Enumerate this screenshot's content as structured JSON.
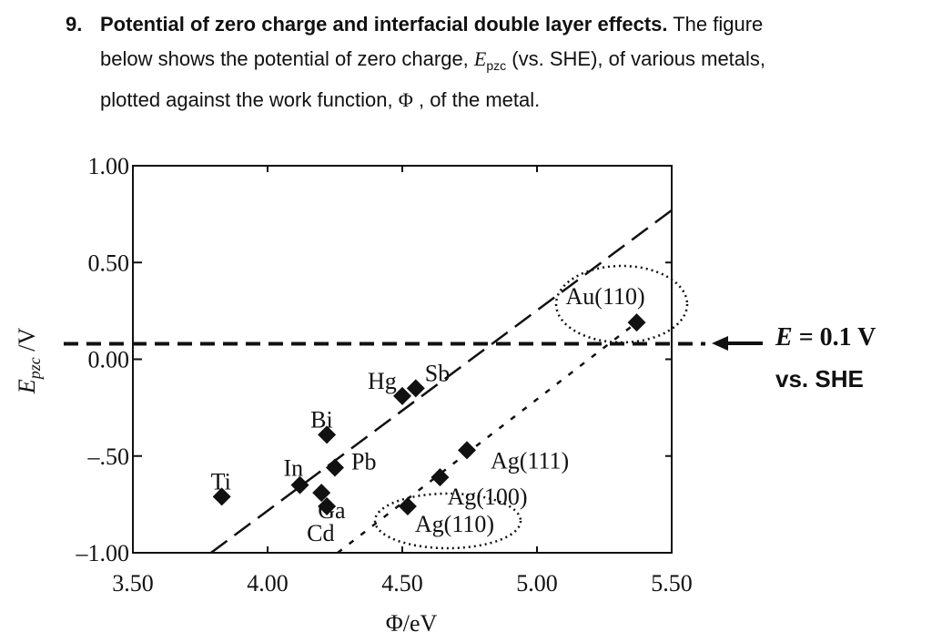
{
  "question": {
    "number": "9.",
    "title": "Potential of zero charge and interfacial double layer effects.",
    "text_a": " The figure",
    "text_b": "below shows the potential of zero charge, ",
    "symbol_E": "E",
    "symbol_sub": "pzc",
    "text_c": " (vs. SHE), of various metals,",
    "text_d": "plotted against the work function, ",
    "symbol_phi": "Φ",
    "text_e": " , of the metal."
  },
  "annotation": {
    "symbol": "E",
    "value": " = 0.1 V",
    "ref": "vs. SHE"
  },
  "chart_data": {
    "type": "scatter",
    "xlabel": "Φ/eV",
    "ylabel_main": "E",
    "ylabel_sub": "pzc",
    "ylabel_unit": " /V",
    "xlim": [
      3.5,
      5.5
    ],
    "ylim": [
      -1.0,
      1.0
    ],
    "x_ticks": [
      3.5,
      4.0,
      4.5,
      5.0,
      5.5
    ],
    "x_tick_labels": [
      "3.50",
      "4.00",
      "4.50",
      "5.00",
      "5.50"
    ],
    "y_ticks": [
      1.0,
      0.5,
      0.0,
      -0.5,
      -1.0
    ],
    "y_tick_labels": [
      "1.00",
      "0.50",
      "0.00",
      "–.50",
      "–1.00"
    ],
    "points": [
      {
        "label": "Ti",
        "x": 3.83,
        "y": -0.71
      },
      {
        "label": "In",
        "x": 4.12,
        "y": -0.65
      },
      {
        "label": "Ga",
        "x": 4.2,
        "y": -0.69
      },
      {
        "label": "Cd",
        "x": 4.22,
        "y": -0.76
      },
      {
        "label": "Bi",
        "x": 4.22,
        "y": -0.39
      },
      {
        "label": "Pb",
        "x": 4.25,
        "y": -0.56
      },
      {
        "label": "Hg",
        "x": 4.5,
        "y": -0.19
      },
      {
        "label": "Sb",
        "x": 4.55,
        "y": -0.15
      },
      {
        "label": "Ag(110)",
        "x": 4.52,
        "y": -0.76
      },
      {
        "label": "Ag(100)",
        "x": 4.64,
        "y": -0.61
      },
      {
        "label": "Ag(111)",
        "x": 4.74,
        "y": -0.47
      },
      {
        "label": "Au(110)",
        "x": 5.37,
        "y": 0.19
      }
    ],
    "lines": [
      {
        "style": "long-dash",
        "from": [
          3.79,
          -1.0
        ],
        "to": [
          5.5,
          0.77
        ]
      },
      {
        "style": "short-dash",
        "from": [
          4.26,
          -1.0
        ],
        "to": [
          5.37,
          0.19
        ]
      },
      {
        "style": "reference",
        "y": 0.08
      }
    ]
  }
}
